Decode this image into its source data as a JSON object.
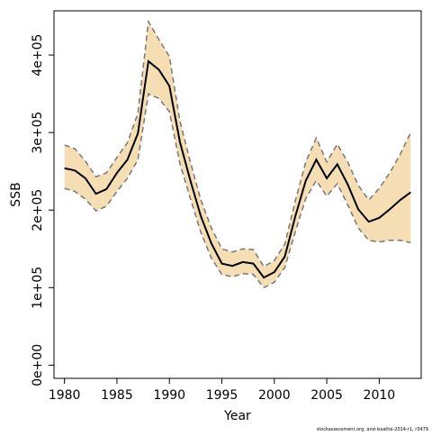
{
  "chart_data": {
    "type": "line",
    "x_label": "Year",
    "y_label": "SSB",
    "footnote": "stockassessment.org, and-lssathe-2014-r1, r3479",
    "x": [
      1980,
      1981,
      1982,
      1983,
      1984,
      1985,
      1986,
      1987,
      1988,
      1989,
      1990,
      1991,
      1992,
      1993,
      1994,
      1995,
      1996,
      1997,
      1998,
      1999,
      2000,
      2001,
      2002,
      2003,
      2004,
      2005,
      2006,
      2007,
      2008,
      2009,
      2010,
      2011,
      2012,
      2013
    ],
    "values": [
      254000,
      251000,
      241000,
      221000,
      227000,
      248000,
      265000,
      299000,
      392000,
      381000,
      360000,
      288000,
      238000,
      192000,
      157000,
      131000,
      128000,
      133000,
      131000,
      113000,
      120000,
      140000,
      192000,
      238000,
      265000,
      241000,
      259000,
      233000,
      201000,
      185000,
      190000,
      201000,
      213000,
      223000
    ],
    "upper": [
      284000,
      279000,
      263000,
      243000,
      248000,
      268000,
      287000,
      325000,
      443000,
      420000,
      398000,
      315000,
      262000,
      213000,
      177000,
      150000,
      146000,
      150000,
      149000,
      127000,
      135000,
      156000,
      212000,
      262000,
      293000,
      262000,
      285000,
      262000,
      232000,
      213000,
      228000,
      248000,
      272000,
      300000
    ],
    "lower": [
      228000,
      224000,
      214000,
      199000,
      205000,
      224000,
      241000,
      265000,
      350000,
      344000,
      327000,
      260000,
      215000,
      171000,
      138000,
      117000,
      114000,
      118000,
      117000,
      100000,
      107000,
      126000,
      172000,
      215000,
      238000,
      218000,
      234000,
      207000,
      177000,
      161000,
      159000,
      161000,
      161000,
      158000
    ],
    "color": "#000000",
    "band_color": "#f5deb3",
    "bound_color": "#777777",
    "xlim": [
      1979,
      2014
    ],
    "xticks": [
      1980,
      1985,
      1990,
      1995,
      2000,
      2005,
      2010
    ],
    "ylim": [
      -17000,
      457000
    ],
    "yticks": [
      {
        "value": 0,
        "label": "0e+00"
      },
      {
        "value": 100000,
        "label": "1e+05"
      },
      {
        "value": 200000,
        "label": "2e+05"
      },
      {
        "value": 300000,
        "label": "3e+05"
      },
      {
        "value": 400000,
        "label": "4e+05"
      }
    ]
  }
}
